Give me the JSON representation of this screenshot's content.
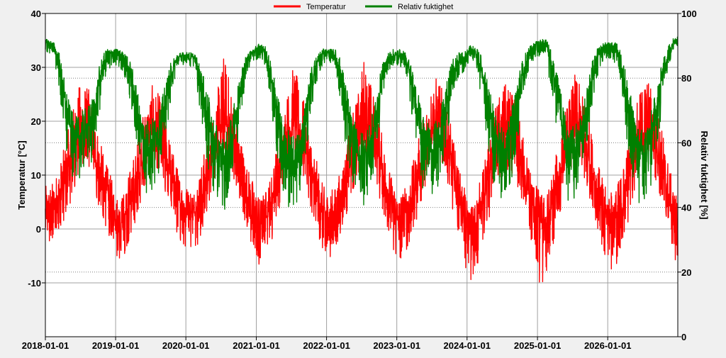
{
  "chart_data": {
    "type": "line",
    "title": "",
    "legend": {
      "placement": "top-center",
      "entries": [
        {
          "name": "Temperatur",
          "color": "#ff0000"
        },
        {
          "name": "Relativ fuktighet",
          "color": "#008000"
        }
      ]
    },
    "x_axis": {
      "type": "date",
      "range": [
        "2018-01-01",
        "2026-12-31"
      ],
      "tick_labels": [
        "2018-01-01",
        "2019-01-01",
        "2020-01-01",
        "2021-01-01",
        "2022-01-01",
        "2023-01-01",
        "2024-01-01",
        "2025-01-01",
        "2026-01-01"
      ],
      "grid": true
    },
    "y_left": {
      "label": "Temperatur [°C]",
      "range": [
        -20,
        40
      ],
      "ticks": [
        -10,
        0,
        10,
        20,
        30,
        40
      ],
      "tick_labels": [
        "-10",
        "0",
        "10",
        "20",
        "30",
        "40"
      ],
      "grid": true
    },
    "y_right": {
      "label": "Relativ fuktighet [%]",
      "range": [
        0,
        100
      ],
      "ticks": [
        0,
        20,
        40,
        60,
        80,
        100
      ],
      "tick_labels": [
        "0",
        "20",
        "40",
        "60",
        "80",
        "100"
      ],
      "grid": "dotted"
    },
    "series": [
      {
        "name": "Temperatur",
        "axis": "left",
        "color": "#ff0000",
        "resolution": "monthly, approximate (daily data shown with high noise)",
        "x": [
          "2018-01",
          "2018-02",
          "2018-03",
          "2018-04",
          "2018-05",
          "2018-06",
          "2018-07",
          "2018-08",
          "2018-09",
          "2018-10",
          "2018-11",
          "2018-12",
          "2019-01",
          "2019-02",
          "2019-03",
          "2019-04",
          "2019-05",
          "2019-06",
          "2019-07",
          "2019-08",
          "2019-09",
          "2019-10",
          "2019-11",
          "2019-12",
          "2020-01",
          "2020-02",
          "2020-03",
          "2020-04",
          "2020-05",
          "2020-06",
          "2020-07",
          "2020-08",
          "2020-09",
          "2020-10",
          "2020-11",
          "2020-12",
          "2021-01",
          "2021-02",
          "2021-03",
          "2021-04",
          "2021-05",
          "2021-06",
          "2021-07",
          "2021-08",
          "2021-09",
          "2021-10",
          "2021-11",
          "2021-12",
          "2022-01",
          "2022-02",
          "2022-03",
          "2022-04",
          "2022-05",
          "2022-06",
          "2022-07",
          "2022-08",
          "2022-09",
          "2022-10",
          "2022-11",
          "2022-12",
          "2023-01",
          "2023-02",
          "2023-03",
          "2023-04",
          "2023-05",
          "2023-06",
          "2023-07",
          "2023-08",
          "2023-09",
          "2023-10",
          "2023-11",
          "2023-12",
          "2024-01",
          "2024-02",
          "2024-03",
          "2024-04",
          "2024-05",
          "2024-06",
          "2024-07",
          "2024-08",
          "2024-09",
          "2024-10",
          "2024-11",
          "2024-12",
          "2025-01",
          "2025-02",
          "2025-03",
          "2025-04",
          "2025-05",
          "2025-06",
          "2025-07",
          "2025-08",
          "2025-09",
          "2025-10",
          "2025-11",
          "2025-12",
          "2026-01",
          "2026-02",
          "2026-03",
          "2026-04",
          "2026-05",
          "2026-06",
          "2026-07",
          "2026-08",
          "2026-09",
          "2026-10",
          "2026-11",
          "2026-12"
        ],
        "values": [
          3,
          4,
          6,
          9,
          13,
          17,
          19,
          18,
          14,
          10,
          7,
          4,
          1,
          2,
          5,
          8,
          12,
          16,
          18,
          17,
          14,
          10,
          6,
          4,
          3,
          3,
          5,
          9,
          13,
          17,
          20,
          19,
          15,
          10,
          6,
          4,
          1,
          2,
          4,
          8,
          13,
          18,
          20,
          18,
          15,
          10,
          6,
          3,
          2,
          3,
          5,
          9,
          13,
          17,
          20,
          19,
          15,
          11,
          7,
          3,
          2,
          3,
          5,
          8,
          13,
          17,
          19,
          19,
          16,
          11,
          6,
          3,
          -1,
          1,
          4,
          8,
          13,
          16,
          18,
          18,
          15,
          11,
          7,
          4,
          2,
          1,
          4,
          8,
          13,
          16,
          19,
          18,
          15,
          10,
          6,
          3,
          2,
          2,
          5,
          9,
          13,
          16,
          18,
          18,
          15,
          11,
          6,
          2
        ],
        "range_low": [
          -3,
          -2,
          0,
          2,
          5,
          9,
          12,
          11,
          7,
          3,
          0,
          -3,
          -6,
          -5,
          -2,
          1,
          5,
          9,
          12,
          11,
          7,
          3,
          -1,
          -3,
          -4,
          -4,
          -2,
          2,
          6,
          10,
          13,
          12,
          8,
          3,
          -1,
          -4,
          -7,
          -6,
          -3,
          1,
          6,
          11,
          13,
          12,
          8,
          3,
          -1,
          -5,
          -6,
          -5,
          -2,
          2,
          6,
          10,
          13,
          12,
          8,
          4,
          0,
          -5,
          -6,
          -5,
          -2,
          1,
          6,
          10,
          12,
          12,
          9,
          4,
          -1,
          -5,
          -12,
          -9,
          -4,
          0,
          6,
          9,
          11,
          11,
          8,
          4,
          0,
          -5,
          -11,
          -9,
          -4,
          0,
          6,
          9,
          12,
          11,
          8,
          3,
          -1,
          -5,
          -9,
          -7,
          -3,
          1,
          6,
          9,
          11,
          11,
          8,
          4,
          -1,
          -7
        ],
        "range_high": [
          8,
          9,
          12,
          16,
          21,
          26,
          28,
          26,
          22,
          16,
          12,
          9,
          6,
          7,
          11,
          15,
          20,
          25,
          27,
          25,
          22,
          16,
          12,
          9,
          8,
          8,
          11,
          16,
          21,
          26,
          33,
          28,
          23,
          17,
          12,
          9,
          6,
          7,
          10,
          15,
          21,
          26,
          31,
          26,
          23,
          17,
          12,
          8,
          7,
          8,
          11,
          16,
          21,
          26,
          33,
          28,
          23,
          18,
          13,
          8,
          7,
          8,
          11,
          15,
          21,
          26,
          29,
          27,
          24,
          18,
          12,
          8,
          4,
          6,
          10,
          15,
          21,
          25,
          27,
          26,
          23,
          18,
          13,
          9,
          7,
          6,
          10,
          15,
          21,
          25,
          29,
          26,
          23,
          17,
          12,
          8,
          7,
          8,
          11,
          16,
          21,
          25,
          29,
          27,
          23,
          18,
          12,
          7
        ]
      },
      {
        "name": "Relativ fuktighet",
        "axis": "right",
        "color": "#008000",
        "resolution": "monthly, approximate (daily data shown with high noise)",
        "x": [
          "2018-01",
          "2018-02",
          "2018-03",
          "2018-04",
          "2018-05",
          "2018-06",
          "2018-07",
          "2018-08",
          "2018-09",
          "2018-10",
          "2018-11",
          "2018-12",
          "2019-01",
          "2019-02",
          "2019-03",
          "2019-04",
          "2019-05",
          "2019-06",
          "2019-07",
          "2019-08",
          "2019-09",
          "2019-10",
          "2019-11",
          "2019-12",
          "2020-01",
          "2020-02",
          "2020-03",
          "2020-04",
          "2020-05",
          "2020-06",
          "2020-07",
          "2020-08",
          "2020-09",
          "2020-10",
          "2020-11",
          "2020-12",
          "2021-01",
          "2021-02",
          "2021-03",
          "2021-04",
          "2021-05",
          "2021-06",
          "2021-07",
          "2021-08",
          "2021-09",
          "2021-10",
          "2021-11",
          "2021-12",
          "2022-01",
          "2022-02",
          "2022-03",
          "2022-04",
          "2022-05",
          "2022-06",
          "2022-07",
          "2022-08",
          "2022-09",
          "2022-10",
          "2022-11",
          "2022-12",
          "2023-01",
          "2023-02",
          "2023-03",
          "2023-04",
          "2023-05",
          "2023-06",
          "2023-07",
          "2023-08",
          "2023-09",
          "2023-10",
          "2023-11",
          "2023-12",
          "2024-01",
          "2024-02",
          "2024-03",
          "2024-04",
          "2024-05",
          "2024-06",
          "2024-07",
          "2024-08",
          "2024-09",
          "2024-10",
          "2024-11",
          "2024-12",
          "2025-01",
          "2025-02",
          "2025-03",
          "2025-04",
          "2025-05",
          "2025-06",
          "2025-07",
          "2025-08",
          "2025-09",
          "2025-10",
          "2025-11",
          "2025-12",
          "2026-01",
          "2026-02",
          "2026-03",
          "2026-04",
          "2026-05",
          "2026-06",
          "2026-07",
          "2026-08",
          "2026-09",
          "2026-10",
          "2026-11",
          "2026-12"
        ],
        "values": [
          91,
          90,
          84,
          72,
          64,
          61,
          63,
          65,
          70,
          81,
          87,
          88,
          88,
          86,
          82,
          73,
          63,
          60,
          61,
          64,
          72,
          80,
          86,
          87,
          87,
          86,
          80,
          72,
          62,
          55,
          54,
          58,
          68,
          80,
          86,
          88,
          90,
          88,
          82,
          70,
          60,
          55,
          54,
          57,
          68,
          80,
          85,
          88,
          88,
          87,
          82,
          70,
          60,
          56,
          56,
          59,
          68,
          79,
          86,
          87,
          87,
          86,
          81,
          70,
          61,
          58,
          58,
          62,
          71,
          81,
          85,
          86,
          89,
          88,
          83,
          74,
          64,
          58,
          58,
          62,
          71,
          80,
          87,
          90,
          91,
          90,
          85,
          76,
          64,
          56,
          58,
          62,
          70,
          80,
          87,
          90,
          90,
          89,
          84,
          73,
          62,
          56,
          57,
          62,
          72,
          82,
          88,
          92
        ],
        "range_low": [
          88,
          86,
          76,
          58,
          50,
          46,
          48,
          50,
          57,
          72,
          82,
          84,
          84,
          80,
          72,
          58,
          47,
          44,
          46,
          50,
          60,
          72,
          82,
          84,
          84,
          82,
          70,
          56,
          45,
          40,
          38,
          42,
          54,
          70,
          82,
          85,
          86,
          84,
          72,
          55,
          44,
          40,
          38,
          42,
          54,
          70,
          80,
          84,
          85,
          83,
          72,
          55,
          44,
          40,
          40,
          44,
          56,
          70,
          82,
          84,
          84,
          82,
          70,
          55,
          45,
          42,
          42,
          46,
          58,
          72,
          80,
          82,
          85,
          84,
          74,
          60,
          48,
          42,
          42,
          46,
          58,
          72,
          82,
          86,
          87,
          85,
          76,
          62,
          48,
          40,
          42,
          46,
          58,
          72,
          82,
          86,
          86,
          84,
          74,
          58,
          46,
          40,
          42,
          46,
          58,
          74,
          84,
          90
        ],
        "range_high": [
          92,
          91,
          88,
          78,
          70,
          68,
          70,
          72,
          76,
          86,
          89,
          89,
          89,
          88,
          86,
          80,
          70,
          68,
          68,
          70,
          78,
          85,
          88,
          88,
          88,
          88,
          84,
          78,
          70,
          64,
          62,
          66,
          74,
          84,
          88,
          89,
          91,
          90,
          86,
          78,
          68,
          64,
          62,
          65,
          74,
          84,
          88,
          89,
          89,
          89,
          86,
          78,
          68,
          64,
          64,
          66,
          74,
          84,
          88,
          89,
          89,
          88,
          85,
          78,
          70,
          66,
          66,
          70,
          78,
          86,
          88,
          88,
          90,
          90,
          87,
          80,
          72,
          66,
          66,
          70,
          78,
          86,
          90,
          91,
          92,
          92,
          89,
          82,
          72,
          64,
          66,
          70,
          78,
          86,
          90,
          91,
          91,
          91,
          88,
          80,
          70,
          64,
          66,
          70,
          78,
          86,
          91,
          93
        ]
      }
    ]
  },
  "colors": {
    "background": "#f0f0f0",
    "plot_background": "#ffffff",
    "grid": "#a0a0a0",
    "temperature": "#ff0000",
    "humidity": "#008000"
  }
}
